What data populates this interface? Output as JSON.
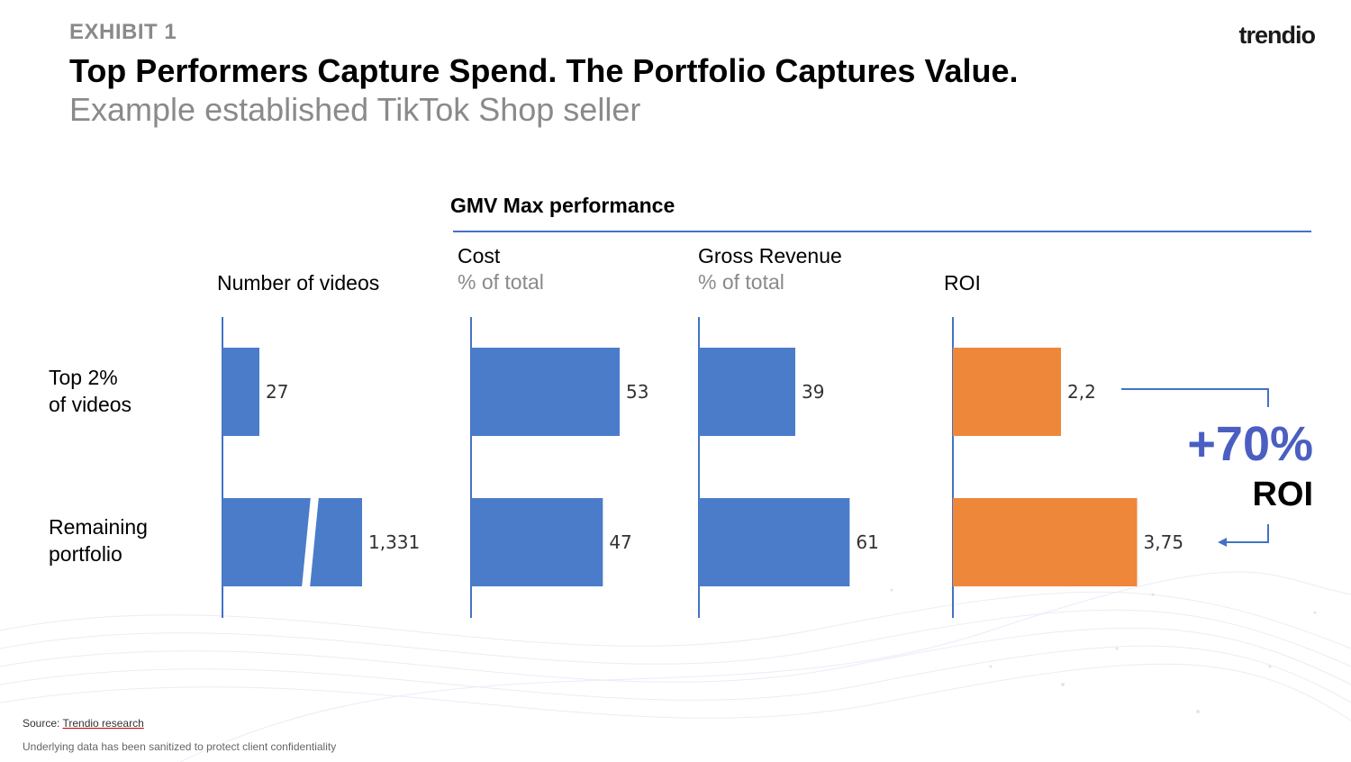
{
  "header": {
    "exhibit": "EXHIBIT 1",
    "logo": "trendio",
    "title": "Top Performers Capture Spend. The Portfolio Captures Value.",
    "subtitle": "Example established TikTok Shop seller"
  },
  "section_title": "GMV Max performance",
  "rows": [
    "Top 2%\nof videos",
    "Remaining\nportfolio"
  ],
  "colors": {
    "blue": "#4a7cc9",
    "orange": "#ee873a",
    "accent": "#4a5fc1",
    "rule": "#4472c4"
  },
  "chart_data": [
    {
      "type": "bar",
      "orientation": "horizontal",
      "title": "Number of videos",
      "subtitle": "",
      "categories": [
        "Top 2% of videos",
        "Remaining portfolio"
      ],
      "values": [
        27,
        1331
      ],
      "value_labels": [
        "27",
        "1,331"
      ],
      "axis_break": true
    },
    {
      "type": "bar",
      "orientation": "horizontal",
      "title": "Cost",
      "subtitle": "% of total",
      "categories": [
        "Top 2% of videos",
        "Remaining portfolio"
      ],
      "values": [
        53,
        47
      ],
      "value_labels": [
        "53",
        "47"
      ],
      "xlim": [
        0,
        80
      ]
    },
    {
      "type": "bar",
      "orientation": "horizontal",
      "title": "Gross Revenue",
      "subtitle": "% of total",
      "categories": [
        "Top 2% of videos",
        "Remaining portfolio"
      ],
      "values": [
        39,
        61
      ],
      "value_labels": [
        "39",
        "61"
      ],
      "xlim": [
        0,
        80
      ]
    },
    {
      "type": "bar",
      "orientation": "horizontal",
      "title": "ROI",
      "subtitle": "",
      "categories": [
        "Top 2% of videos",
        "Remaining portfolio"
      ],
      "values": [
        2.2,
        3.75
      ],
      "value_labels": [
        "2,2",
        "3,75"
      ],
      "xlim": [
        0,
        5.3
      ]
    }
  ],
  "callout": {
    "value": "+70%",
    "label": "ROI"
  },
  "footer": {
    "source_label": "Source:",
    "source_value": "Trendio research",
    "note": "Underlying data has been sanitized to protect client confidentiality"
  }
}
